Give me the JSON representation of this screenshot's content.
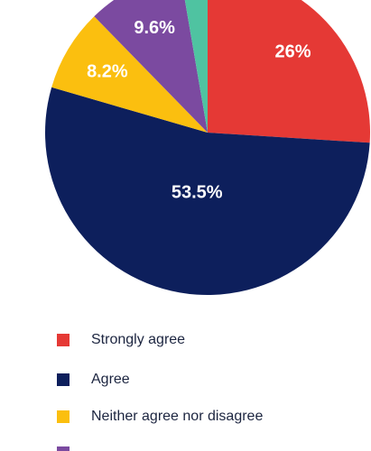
{
  "chart_data": {
    "type": "pie",
    "categories": [
      "Strongly agree",
      "Agree",
      "Neither agree nor disagree",
      null,
      null
    ],
    "values": [
      26,
      53.5,
      8.2,
      9.6,
      2.7
    ],
    "value_labels": [
      "26%",
      "53.5%",
      "8.2%",
      "9.6%",
      null
    ],
    "colors": [
      "#e53935",
      "#0d1f5c",
      "#fbbf0f",
      "#7b4aa0",
      "#4fc3a1"
    ],
    "legend": "bottom"
  }
}
